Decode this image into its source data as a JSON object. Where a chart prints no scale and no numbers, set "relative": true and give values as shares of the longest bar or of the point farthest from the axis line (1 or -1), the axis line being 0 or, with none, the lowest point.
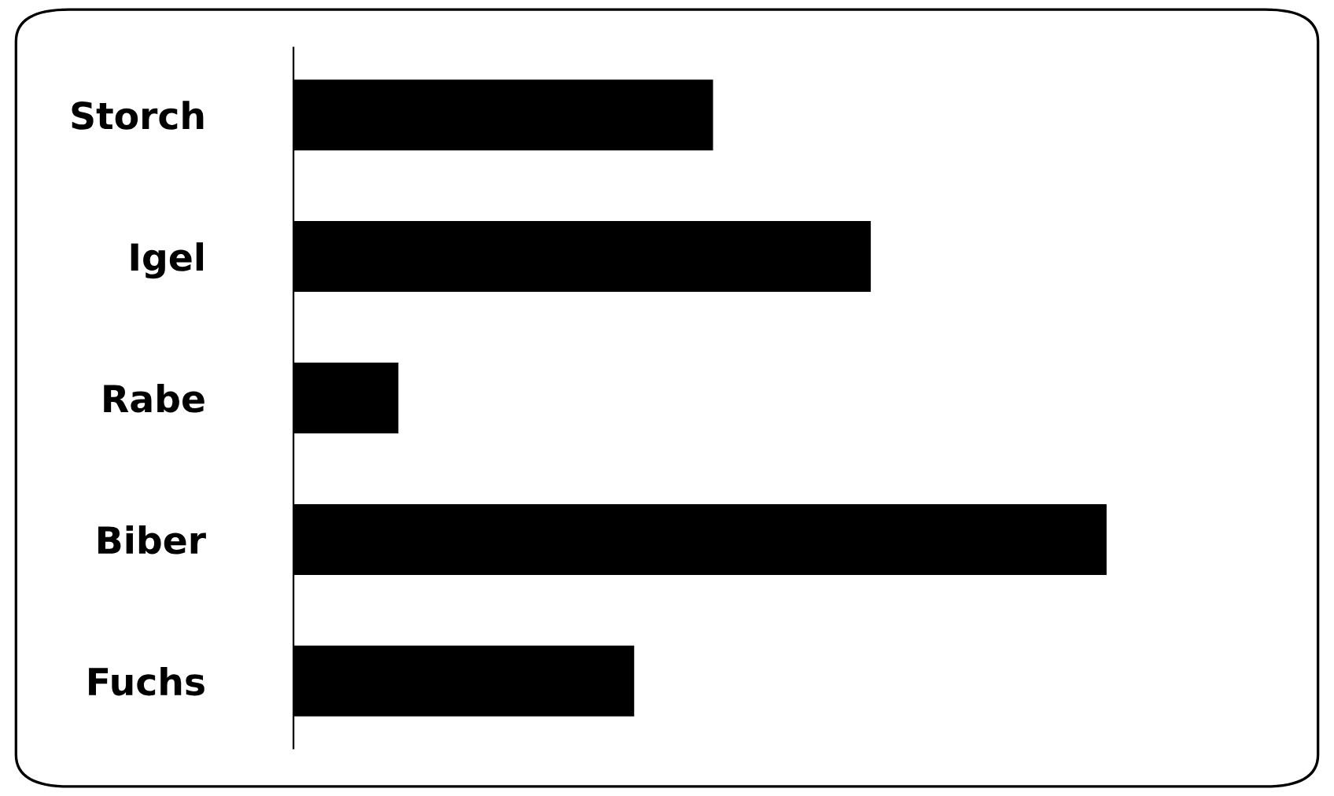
{
  "chart_data": {
    "type": "bar",
    "orientation": "horizontal",
    "relative": true,
    "categories": [
      "Storch",
      "Igel",
      "Rabe",
      "Biber",
      "Fuchs"
    ],
    "values": [
      0.516,
      0.71,
      0.129,
      1,
      0.419
    ],
    "color": "#000000",
    "grid": false,
    "legend": false
  }
}
